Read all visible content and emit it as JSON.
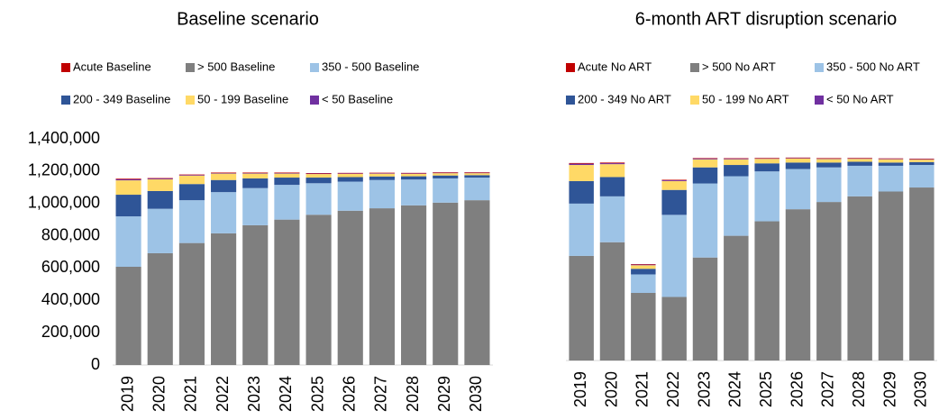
{
  "chart_data": [
    {
      "type": "bar",
      "stacked": true,
      "title": "Baseline scenario",
      "categories": [
        "2019",
        "2020",
        "2021",
        "2022",
        "2023",
        "2024",
        "2025",
        "2026",
        "2027",
        "2028",
        "2029",
        "2030"
      ],
      "ylim": [
        0,
        1400000
      ],
      "yticks": [
        {
          "value": 0,
          "label": "0"
        },
        {
          "value": 200000,
          "label": "200,000"
        },
        {
          "value": 400000,
          "label": "400,000"
        },
        {
          "value": 600000,
          "label": "600,000"
        },
        {
          "value": 800000,
          "label": "800,000"
        },
        {
          "value": 1000000,
          "label": "1,000,000"
        },
        {
          "value": 1200000,
          "label": "1,200,000"
        },
        {
          "value": 1400000,
          "label": "1,400,000"
        }
      ],
      "series": [
        {
          "name": "Acute Baseline",
          "color": "#c00000",
          "values": [
            4000,
            3000,
            3000,
            3000,
            3000,
            3000,
            3000,
            3000,
            3000,
            3000,
            3000,
            3000
          ]
        },
        {
          "name": "> 500 Baseline",
          "color": "#7f7f7f",
          "values": [
            608000,
            692000,
            755000,
            815000,
            865000,
            900000,
            930000,
            955000,
            970000,
            988000,
            1005000,
            1020000
          ]
        },
        {
          "name": "350 - 500 Baseline",
          "color": "#9dc3e6",
          "values": [
            312000,
            275000,
            265000,
            255000,
            230000,
            215000,
            195000,
            180000,
            175000,
            160000,
            150000,
            140000
          ]
        },
        {
          "name": "200 - 349 Baseline",
          "color": "#2f5597",
          "values": [
            134000,
            110000,
            100000,
            75000,
            60000,
            45000,
            35000,
            28000,
            22000,
            20000,
            18000,
            15000
          ]
        },
        {
          "name": "50 - 199 Baseline",
          "color": "#ffd966",
          "values": [
            89000,
            72000,
            52000,
            40000,
            30000,
            25000,
            22000,
            20000,
            17000,
            15000,
            14000,
            12000
          ]
        },
        {
          "name": "< 50 Baseline",
          "color": "#7030a0",
          "values": [
            6000,
            5000,
            4000,
            3000,
            3000,
            3000,
            3000,
            3000,
            3000,
            3000,
            3000,
            3000
          ]
        }
      ]
    },
    {
      "type": "bar",
      "stacked": true,
      "title": "6-month ART disruption scenario",
      "categories": [
        "2019",
        "2020",
        "2021",
        "2022",
        "2023",
        "2024",
        "2025",
        "2026",
        "2027",
        "2028",
        "2029",
        "2030"
      ],
      "ylim": [
        0,
        1400000
      ],
      "series": [
        {
          "name": "Acute No ART",
          "color": "#c00000",
          "values": [
            4000,
            4000,
            3000,
            3000,
            3000,
            3000,
            3000,
            3000,
            3000,
            3000,
            3000,
            3000
          ]
        },
        {
          "name": "> 500 No ART",
          "color": "#7f7f7f",
          "values": [
            650000,
            735000,
            420000,
            395000,
            640000,
            775000,
            865000,
            940000,
            985000,
            1020000,
            1050000,
            1075000
          ]
        },
        {
          "name": "350 - 500 No ART",
          "color": "#9dc3e6",
          "values": [
            325000,
            285000,
            115000,
            510000,
            460000,
            370000,
            310000,
            250000,
            215000,
            190000,
            160000,
            140000
          ]
        },
        {
          "name": "200 - 349 No ART",
          "color": "#2f5597",
          "values": [
            140000,
            120000,
            35000,
            155000,
            100000,
            70000,
            50000,
            40000,
            30000,
            25000,
            20000,
            18000
          ]
        },
        {
          "name": "50 - 199 No ART",
          "color": "#ffd966",
          "values": [
            100000,
            80000,
            22000,
            55000,
            50000,
            35000,
            28000,
            25000,
            22000,
            18000,
            20000,
            15000
          ]
        },
        {
          "name": "< 50 No ART",
          "color": "#7030a0",
          "values": [
            8000,
            6000,
            4000,
            5000,
            5000,
            4000,
            3000,
            3000,
            3000,
            3000,
            3000,
            3000
          ]
        }
      ]
    }
  ]
}
